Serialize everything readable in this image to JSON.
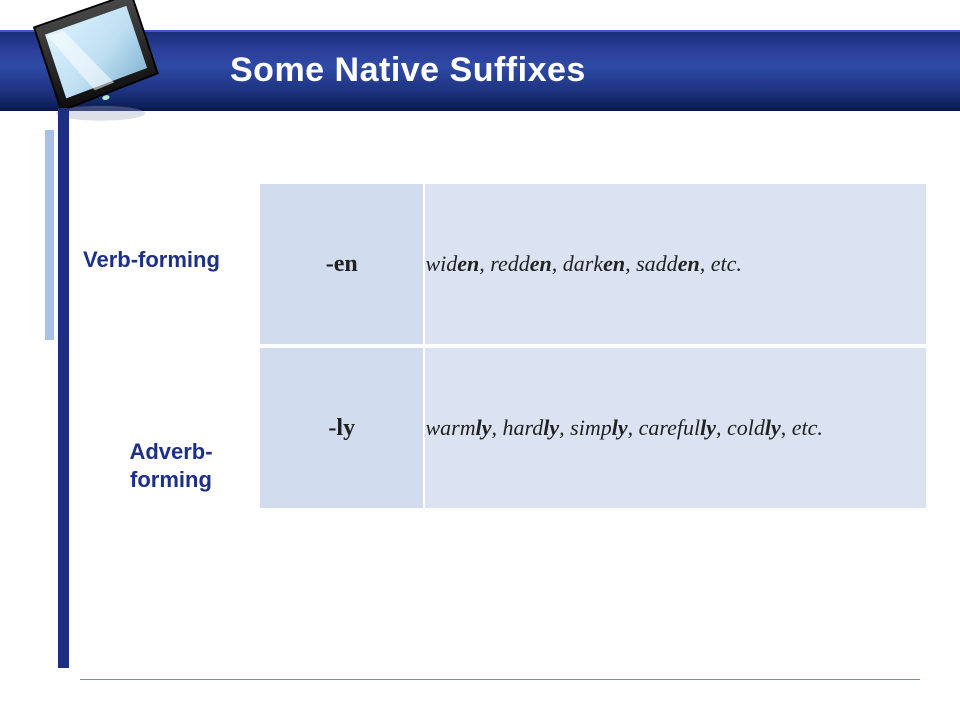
{
  "title": "Some Native Suffixes",
  "colors": {
    "header_gradient_top": "#1a2f7a",
    "header_gradient_mid": "#2f4aa5",
    "header_gradient_bottom": "#0d1e55",
    "accent_light_bar": "#a9c1e7",
    "accent_dark_bar": "#1d2f80",
    "label_text": "#1e2f86",
    "cell_suffix_bg": "#d2dcef",
    "cell_example_bg": "#dbe3f2",
    "footer_line": "#7a8ab8",
    "title_text": "#ffffff"
  },
  "typography": {
    "title_font": "Verdana",
    "title_size_pt": 26,
    "label_font": "Verdana",
    "label_size_pt": 16,
    "cell_font": "Times New Roman",
    "suffix_size_pt": 18,
    "example_size_pt": 16
  },
  "rows": [
    {
      "label": "Verb-forming",
      "suffix": "-en",
      "examples_html": "wid<b>en</b>, redd<b>en</b>, dark<b>en</b>, sadd<b>en</b>, etc."
    },
    {
      "label": "Adverb-\nforming",
      "suffix": "-ly",
      "examples_html": "warm<b>ly</b>, hard<b>ly</b>, simp<b>ly</b>, careful<b>ly</b>, cold<b>ly</b>, etc."
    }
  ],
  "icons": {
    "monitor_icon": "monitor-icon"
  }
}
